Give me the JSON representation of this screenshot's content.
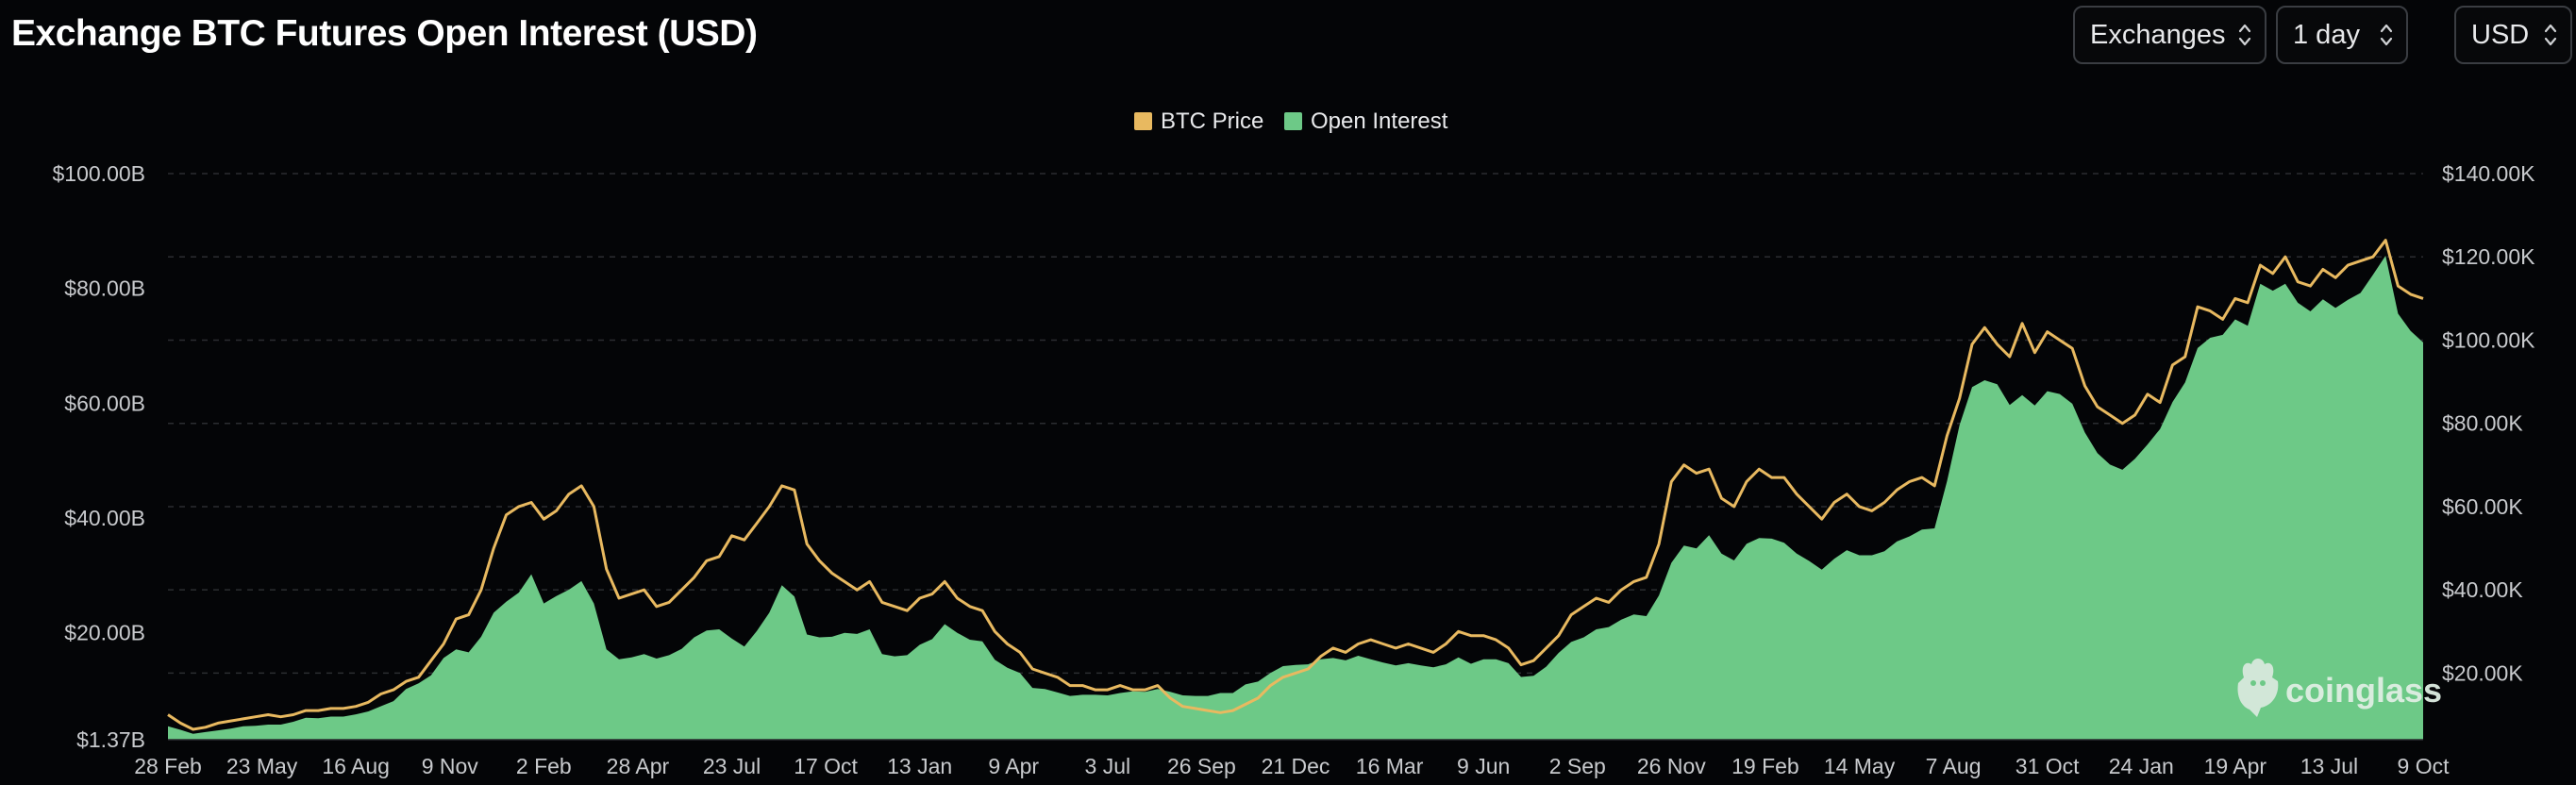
{
  "title": "Exchange BTC Futures Open Interest (USD)",
  "controls": {
    "exchanges_label": "Exchanges",
    "interval_label": "1 day",
    "currency_label": "USD"
  },
  "watermark": "coinglass",
  "colors": {
    "background": "#040507",
    "btc_price": "#e8b960",
    "open_interest": "#6dc987",
    "grid": "#2b2d31",
    "axis_text": "#c8cacd"
  },
  "chart_data": {
    "type": "area",
    "title": "Exchange BTC Futures Open Interest (USD)",
    "legend_position": "top-center",
    "grid": true,
    "legend": [
      {
        "name": "BTC Price",
        "color": "#e8b960"
      },
      {
        "name": "Open Interest",
        "color": "#6dc987"
      }
    ],
    "x_tick_labels": [
      "28 Feb",
      "23 May",
      "16 Aug",
      "9 Nov",
      "2 Feb",
      "28 Apr",
      "23 Jul",
      "17 Oct",
      "13 Jan",
      "9 Apr",
      "3 Jul",
      "26 Sep",
      "21 Dec",
      "16 Mar",
      "9 Jun",
      "2 Sep",
      "26 Nov",
      "19 Feb",
      "14 May",
      "7 Aug",
      "31 Oct",
      "24 Jan",
      "19 Apr",
      "13 Jul",
      "9 Oct"
    ],
    "y_left": {
      "tick_labels": [
        "$1.37B",
        "$20.00B",
        "$40.00B",
        "$60.00B",
        "$80.00B",
        "$100.00B"
      ],
      "tick_values": [
        1.37,
        20,
        40,
        60,
        80,
        100
      ],
      "range": [
        1.37,
        100
      ],
      "unit": "USD billions"
    },
    "y_right": {
      "tick_labels": [
        "$20.00K",
        "$40.00K",
        "$60.00K",
        "$80.00K",
        "$100.00K",
        "$120.00K",
        "$140.00K"
      ],
      "tick_values": [
        20,
        40,
        60,
        80,
        100,
        120,
        140
      ],
      "range": [
        4,
        140
      ],
      "unit": "USD thousands"
    },
    "series": [
      {
        "name": "BTC Price",
        "axis": "right",
        "type": "line",
        "values": [
          10,
          8,
          6.5,
          7,
          8,
          8.5,
          9,
          9.5,
          10,
          9.5,
          10,
          11,
          11,
          11.5,
          11.5,
          12,
          13,
          15,
          16,
          18,
          19,
          23,
          27,
          33,
          34,
          40,
          50,
          58,
          60,
          61,
          57,
          59,
          63,
          65,
          60,
          45,
          38,
          39,
          40,
          36,
          37,
          40,
          43,
          47,
          48,
          53,
          52,
          56,
          60,
          65,
          64,
          51,
          47,
          44,
          42,
          40,
          42,
          37,
          36,
          35,
          38,
          39,
          42,
          38,
          36,
          35,
          30,
          27,
          25,
          21,
          20,
          19,
          17,
          17,
          16,
          16,
          17,
          16,
          16,
          17,
          14,
          12,
          11.5,
          11,
          10.5,
          11,
          12.5,
          14,
          17,
          19,
          20,
          21,
          24,
          26,
          25,
          27,
          28,
          27,
          26,
          27,
          26,
          25,
          27,
          30,
          29,
          29,
          28,
          26,
          22,
          23,
          26,
          29,
          34,
          36,
          38,
          37,
          40,
          42,
          43,
          51,
          66,
          70,
          68,
          69,
          62,
          60,
          66,
          69,
          67,
          67,
          63,
          60,
          57,
          61,
          63,
          60,
          59,
          61,
          64,
          66,
          67,
          65,
          77,
          86,
          99,
          103,
          99,
          96,
          104,
          97,
          102,
          100,
          98,
          89,
          84,
          82,
          80,
          82,
          87,
          85,
          94,
          96,
          108,
          107,
          105,
          110,
          109,
          118,
          116,
          120,
          114,
          113,
          117,
          115,
          118,
          119,
          120,
          124,
          113,
          111,
          110
        ]
      },
      {
        "name": "Open Interest",
        "axis": "left",
        "type": "area",
        "values": [
          3.7,
          3.1,
          2.4,
          2.7,
          3.0,
          3.3,
          3.7,
          3.8,
          4.0,
          4.0,
          4.5,
          5.2,
          5.1,
          5.4,
          5.4,
          5.8,
          6.3,
          7.2,
          8.1,
          10.2,
          11.2,
          12.6,
          15.6,
          17.1,
          16.6,
          19.3,
          23.5,
          25.4,
          27.0,
          30.2,
          25.1,
          26.4,
          27.5,
          29.0,
          25.1,
          17.1,
          15.4,
          15.7,
          16.3,
          15.5,
          16.1,
          17.2,
          19.2,
          20.4,
          20.6,
          19.0,
          17.6,
          20.3,
          23.5,
          28.3,
          26.3,
          19.7,
          19.2,
          19.3,
          20.0,
          19.8,
          20.6,
          16.3,
          15.9,
          16.1,
          17.9,
          18.9,
          21.5,
          20.0,
          18.8,
          18.5,
          15.3,
          13.9,
          13.0,
          10.4,
          10.2,
          9.6,
          9.0,
          9.2,
          9.2,
          9.1,
          9.5,
          9.8,
          9.7,
          10.2,
          9.7,
          9.1,
          9.0,
          9.0,
          9.5,
          9.5,
          11.0,
          11.5,
          13.0,
          14.2,
          14.4,
          14.5,
          15.4,
          15.6,
          15.2,
          16.0,
          15.4,
          14.8,
          14.3,
          14.7,
          14.3,
          14.0,
          14.5,
          15.7,
          14.6,
          15.4,
          15.4,
          14.7,
          12.3,
          12.5,
          14.1,
          16.5,
          18.4,
          19.2,
          20.6,
          21.0,
          22.3,
          23.2,
          22.9,
          26.5,
          32.2,
          35.2,
          34.7,
          37.0,
          33.8,
          32.6,
          35.5,
          36.5,
          36.4,
          35.7,
          33.8,
          32.5,
          31.0,
          32.9,
          34.4,
          33.5,
          33.5,
          34.2,
          35.9,
          36.8,
          38.0,
          38.2,
          46.4,
          56.2,
          62.8,
          64.0,
          63.3,
          59.7,
          61.4,
          59.6,
          62.1,
          61.6,
          59.9,
          54.9,
          51.3,
          49.3,
          48.4,
          50.3,
          52.8,
          55.5,
          60.2,
          63.6,
          69.6,
          71.4,
          71.9,
          74.6,
          73.5,
          80.8,
          79.6,
          80.8,
          77.5,
          76.0,
          78.1,
          76.6,
          78.0,
          79.2,
          82.4,
          85.7,
          75.6,
          72.6,
          70.6
        ]
      }
    ]
  }
}
